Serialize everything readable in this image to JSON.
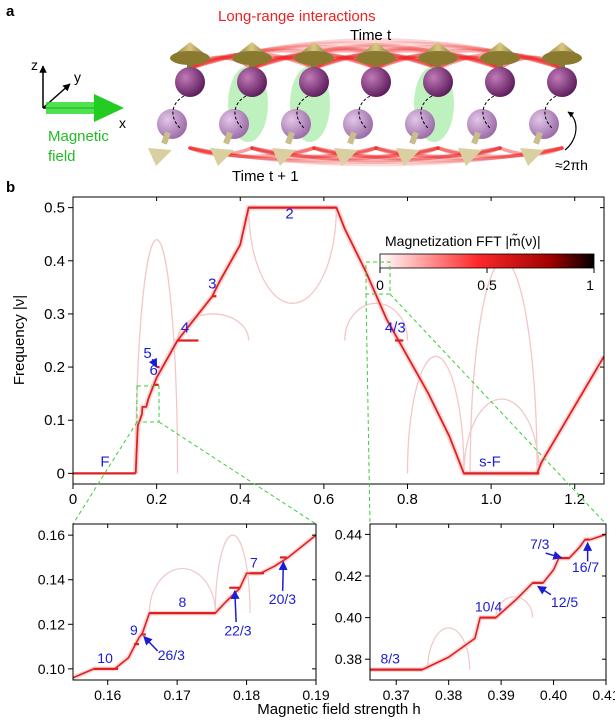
{
  "panel_a": {
    "label": "a",
    "interactions_label": "Long-range interactions",
    "time_t_label": "Time t",
    "time_t1_label": "Time t + 1",
    "rotation_label": "≈2πh",
    "field_label_line1": "Magnetic",
    "field_label_line2": "field",
    "axis_z": "z",
    "axis_y": "y",
    "axis_x": "x",
    "spin_count": 7
  },
  "chart_data": [
    {
      "type": "heatmap",
      "panel": "b",
      "panel_label": "b",
      "xlabel": "",
      "ylabel": "Frequency |ν|",
      "xlim": [
        0,
        1.27
      ],
      "ylim": [
        -0.02,
        0.52
      ],
      "xticks": [
        "0",
        "0.2",
        "0.4",
        "0.6",
        "0.8",
        "1.0",
        "1.2"
      ],
      "xtick_values": [
        0,
        0.2,
        0.4,
        0.6,
        0.8,
        1.0,
        1.2
      ],
      "yticks": [
        "0",
        "0.1",
        "0.2",
        "0.3",
        "0.4",
        "0.5"
      ],
      "ytick_values": [
        0,
        0.1,
        0.2,
        0.3,
        0.4,
        0.5
      ],
      "colorbar": {
        "title": "Magnetization FFT |m̃(ν)|",
        "ticks": [
          "0",
          "0.5",
          "1"
        ],
        "range": [
          0,
          1
        ],
        "colors": [
          "#ffffff",
          "#ff2a2a",
          "#a00000",
          "#000000"
        ]
      },
      "main_curve": [
        [
          0.15,
          0.0
        ],
        [
          0.152,
          0.04
        ],
        [
          0.155,
          0.09
        ],
        [
          0.16,
          0.1
        ],
        [
          0.165,
          0.112
        ],
        [
          0.166,
          0.125
        ],
        [
          0.175,
          0.125
        ],
        [
          0.18,
          0.14
        ],
        [
          0.19,
          0.16
        ],
        [
          0.2,
          0.18
        ],
        [
          0.25,
          0.25
        ],
        [
          0.3,
          0.3
        ],
        [
          0.333,
          0.333
        ],
        [
          0.35,
          0.36
        ],
        [
          0.4,
          0.43
        ],
        [
          0.42,
          0.5
        ],
        [
          0.63,
          0.5
        ],
        [
          0.65,
          0.46
        ],
        [
          0.7,
          0.38
        ],
        [
          0.75,
          0.29
        ],
        [
          0.8,
          0.22
        ],
        [
          0.85,
          0.15
        ],
        [
          0.9,
          0.07
        ],
        [
          0.935,
          0.0
        ],
        [
          0.95,
          0.0
        ],
        [
          1.11,
          0.0
        ],
        [
          1.12,
          0.02
        ],
        [
          1.18,
          0.1
        ],
        [
          1.27,
          0.22
        ]
      ],
      "plateaus": [
        {
          "label": "F",
          "h0": 0.0,
          "h1": 0.15,
          "nu": 0.0
        },
        {
          "label": "6",
          "h0": 0.195,
          "h1": 0.205,
          "nu": 0.1667
        },
        {
          "label": "5",
          "h0": 0.2,
          "h1": 0.2,
          "nu": 0.2
        },
        {
          "label": "4",
          "h0": 0.25,
          "h1": 0.3,
          "nu": 0.25
        },
        {
          "label": "3",
          "h0": 0.333,
          "h1": 0.343,
          "nu": 0.3333
        },
        {
          "label": "2",
          "h0": 0.42,
          "h1": 0.63,
          "nu": 0.5
        },
        {
          "label": "4/3",
          "h0": 0.77,
          "h1": 0.79,
          "nu": 0.25
        },
        {
          "label": "s-F",
          "h0": 0.935,
          "h1": 1.115,
          "nu": 0.0
        }
      ]
    },
    {
      "type": "heatmap",
      "panel": "b-inset-left",
      "xlim": [
        0.155,
        0.19
      ],
      "ylim": [
        0.095,
        0.165
      ],
      "xticks": [
        "0.16",
        "0.17",
        "0.18",
        "0.19"
      ],
      "xtick_values": [
        0.16,
        0.17,
        0.18,
        0.19
      ],
      "yticks": [
        "0.10",
        "0.12",
        "0.14",
        "0.16"
      ],
      "ytick_values": [
        0.1,
        0.12,
        0.14,
        0.16
      ],
      "main_curve": [
        [
          0.155,
          0.096
        ],
        [
          0.158,
          0.1
        ],
        [
          0.161,
          0.1
        ],
        [
          0.163,
          0.105
        ],
        [
          0.164,
          0.111
        ],
        [
          0.1645,
          0.114
        ],
        [
          0.165,
          0.116
        ],
        [
          0.166,
          0.125
        ],
        [
          0.1755,
          0.125
        ],
        [
          0.177,
          0.13
        ],
        [
          0.179,
          0.136
        ],
        [
          0.18,
          0.1429
        ],
        [
          0.182,
          0.1429
        ],
        [
          0.184,
          0.146
        ],
        [
          0.186,
          0.15
        ],
        [
          0.188,
          0.155
        ],
        [
          0.19,
          0.16
        ]
      ],
      "plateaus": [
        {
          "label": "10",
          "h0": 0.158,
          "h1": 0.1615,
          "nu": 0.1
        },
        {
          "label": "9",
          "h0": 0.1638,
          "h1": 0.1645,
          "nu": 0.1111
        },
        {
          "label": "26/3",
          "h0": 0.1648,
          "h1": 0.1655,
          "nu": 0.1154
        },
        {
          "label": "8",
          "h0": 0.166,
          "h1": 0.1755,
          "nu": 0.125
        },
        {
          "label": "22/3",
          "h0": 0.1775,
          "h1": 0.179,
          "nu": 0.1364
        },
        {
          "label": "7",
          "h0": 0.1805,
          "h1": 0.1825,
          "nu": 0.1429
        },
        {
          "label": "20/3",
          "h0": 0.1848,
          "h1": 0.1858,
          "nu": 0.15
        }
      ]
    },
    {
      "type": "heatmap",
      "panel": "b-inset-right",
      "xlabel": "Magnetic field strength h",
      "xlim": [
        0.365,
        0.41
      ],
      "ylim": [
        0.37,
        0.445
      ],
      "xticks": [
        "0.37",
        "0.38",
        "0.39",
        "0.40",
        "0.41"
      ],
      "xtick_values": [
        0.37,
        0.38,
        0.39,
        0.4,
        0.41
      ],
      "yticks": [
        "0.38",
        "0.40",
        "0.42",
        "0.44"
      ],
      "ytick_values": [
        0.38,
        0.4,
        0.42,
        0.44
      ],
      "main_curve": [
        [
          0.365,
          0.375
        ],
        [
          0.375,
          0.375
        ],
        [
          0.38,
          0.381
        ],
        [
          0.385,
          0.39
        ],
        [
          0.386,
          0.4
        ],
        [
          0.389,
          0.4
        ],
        [
          0.393,
          0.409
        ],
        [
          0.396,
          0.4167
        ],
        [
          0.398,
          0.4167
        ],
        [
          0.4,
          0.423
        ],
        [
          0.401,
          0.4286
        ],
        [
          0.403,
          0.4286
        ],
        [
          0.405,
          0.434
        ],
        [
          0.406,
          0.4375
        ],
        [
          0.407,
          0.4375
        ],
        [
          0.41,
          0.44
        ]
      ],
      "plateaus": [
        {
          "label": "8/3",
          "h0": 0.365,
          "h1": 0.375,
          "nu": 0.375
        },
        {
          "label": "10/4",
          "h0": 0.386,
          "h1": 0.389,
          "nu": 0.4
        },
        {
          "label": "12/5",
          "h0": 0.396,
          "h1": 0.398,
          "nu": 0.4167
        },
        {
          "label": "7/3",
          "h0": 0.401,
          "h1": 0.403,
          "nu": 0.4286
        },
        {
          "label": "16/7",
          "h0": 0.406,
          "h1": 0.4068,
          "nu": 0.4375
        }
      ]
    }
  ],
  "colors": {
    "signal": "#e02020",
    "faint": "#f3c7c7",
    "label_blue": "#1c1cd6",
    "zoom_dash": "#3ccc3c",
    "field_green": "#33dd33",
    "arc_red": "#ee2222"
  }
}
